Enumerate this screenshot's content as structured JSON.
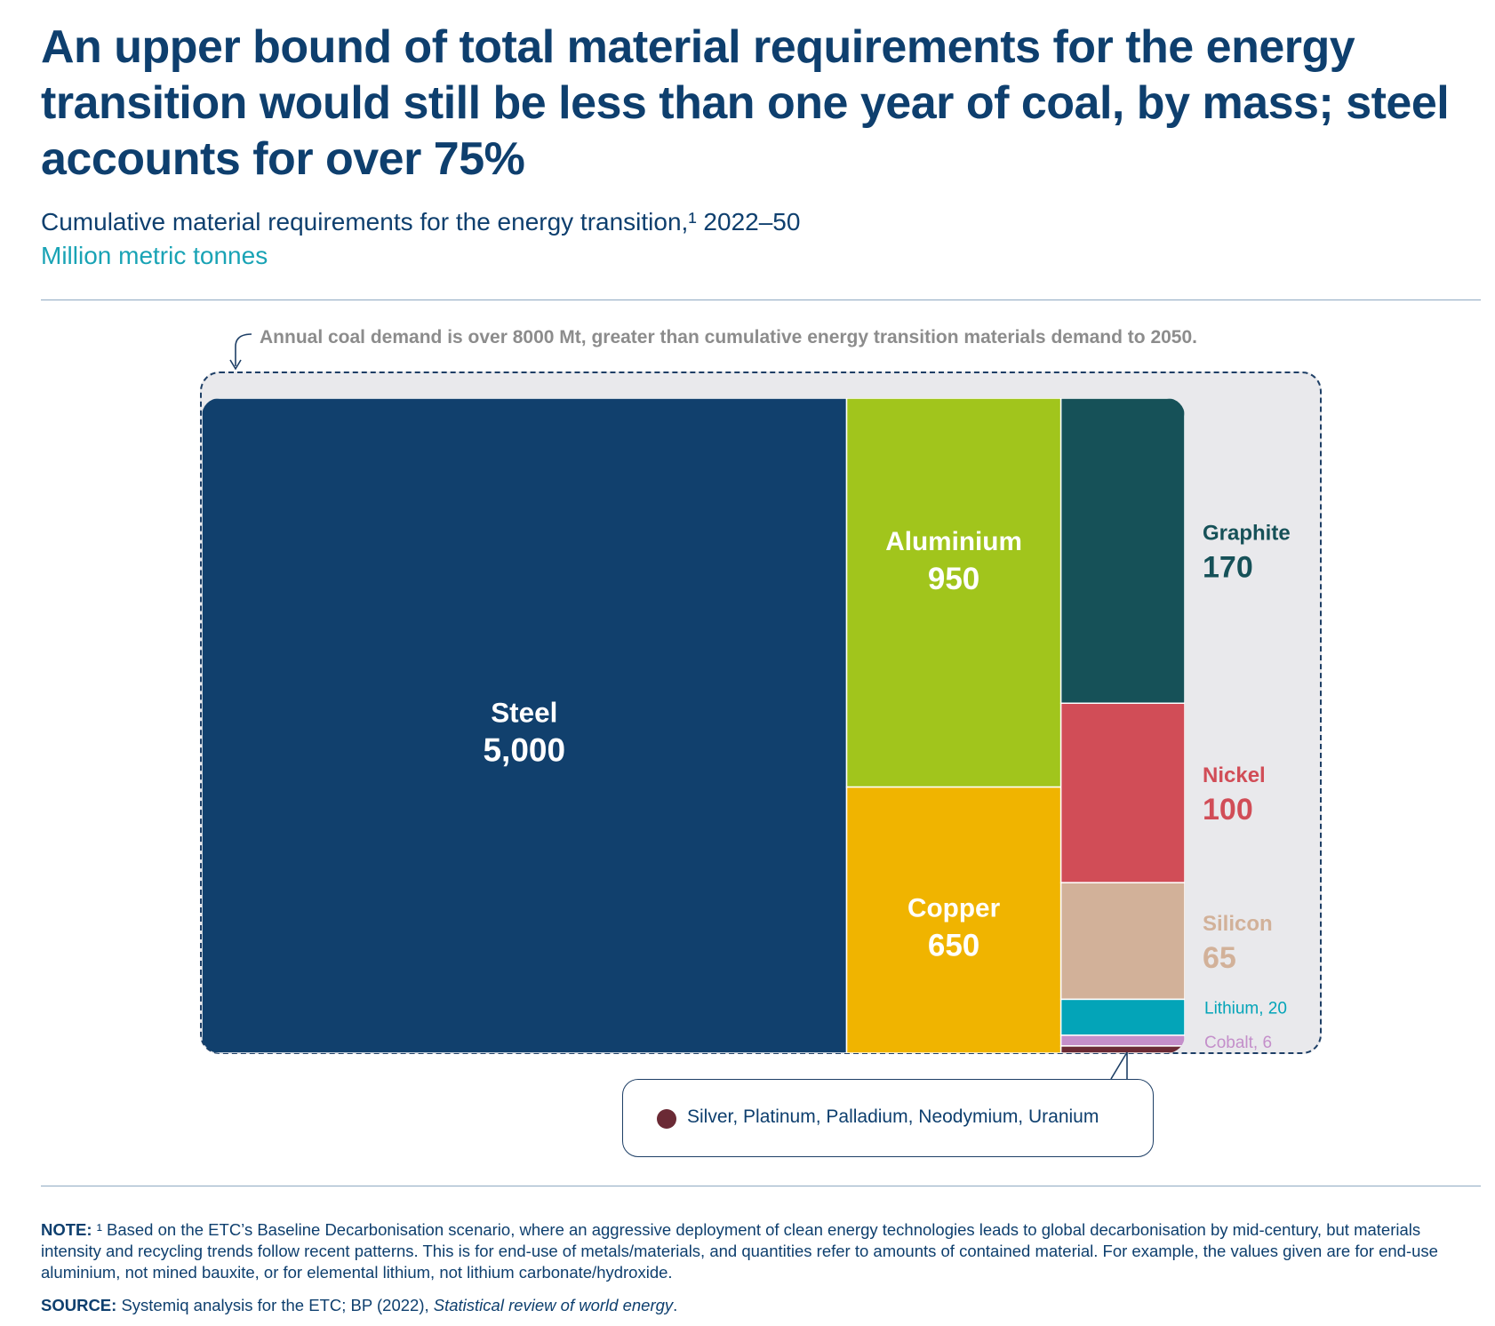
{
  "header": {
    "title": "An upper bound of total material requirements for the energy transition would still be less than one year of coal, by mass; steel accounts for over 75%",
    "subtitle": "Cumulative material requirements for the energy transition,¹ 2022–50",
    "unit": "Million metric tonnes"
  },
  "annotation": {
    "coal_note": "Annual coal demand is over 8000 Mt, greater than cumulative energy transition materials demand to 2050."
  },
  "callout": {
    "text": "Silver, Platinum, Palladium, Neodymium, Uranium",
    "dot_color": "#6b2a35"
  },
  "chart_data": {
    "type": "treemap",
    "unit": "Million metric tonnes",
    "series": [
      {
        "name": "Steel",
        "value": 5000,
        "value_label": "5,000",
        "color": "#11406d",
        "label_color": "#ffffff"
      },
      {
        "name": "Aluminium",
        "value": 950,
        "value_label": "950",
        "color": "#a1c51c",
        "label_color": "#ffffff"
      },
      {
        "name": "Copper",
        "value": 650,
        "value_label": "650",
        "color": "#f0b400",
        "label_color": "#ffffff"
      },
      {
        "name": "Graphite",
        "value": 170,
        "value_label": "170",
        "color": "#165158",
        "label_color": "#165158"
      },
      {
        "name": "Nickel",
        "value": 100,
        "value_label": "100",
        "color": "#d14d57",
        "label_color": "#d14d57"
      },
      {
        "name": "Silicon",
        "value": 65,
        "value_label": "65",
        "color": "#d2b199",
        "label_color": "#d2b199"
      },
      {
        "name": "Lithium",
        "value": 20,
        "value_label": "Lithium, 20",
        "color": "#03a4b8",
        "label_color": "#03a4b8"
      },
      {
        "name": "Cobalt",
        "value": 6,
        "value_label": "Cobalt, 6",
        "color": "#c48fca",
        "label_color": "#c48fca"
      },
      {
        "name": "Silver, Platinum, Palladium, Neodymium, Uranium",
        "value_label": "",
        "color": "#6b2a35",
        "label_color": "#6b2a35"
      }
    ]
  },
  "footer": {
    "note_label": "NOTE:",
    "note_text": "¹ Based on the ETC’s Baseline Decarbonisation scenario, where an aggressive deployment of clean energy technologies leads to global decarbonisation by mid-century, but materials intensity and recycling trends follow recent patterns. This is for end-use of metals/materials, and quantities refer to amounts of contained material. For example, the values given are for end-use aluminium, not mined bauxite, or for elemental lithium, not lithium carbonate/hydroxide.",
    "source_label": "SOURCE:",
    "source_text": "Systemiq analysis for the ETC; BP (2022),",
    "source_italic": "Statistical review of world energy",
    "source_end": "."
  }
}
